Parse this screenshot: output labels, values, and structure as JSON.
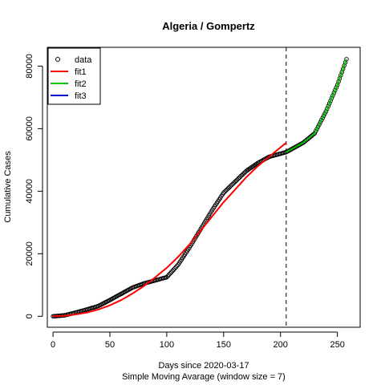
{
  "chart_data": {
    "type": "line",
    "title": "Algeria / Gompertz",
    "xlabel": "Days since 2020-03-17",
    "subtitle": "Simple Moving Avarage (window size = 7)",
    "ylabel": "Cumulative Cases",
    "xlim": [
      -5,
      270
    ],
    "ylim": [
      -3500,
      86000
    ],
    "x_ticks": [
      0,
      50,
      100,
      150,
      200,
      250
    ],
    "y_ticks": [
      0,
      20000,
      40000,
      60000,
      80000
    ],
    "cutoff_x": 205,
    "legend_position": "top-left",
    "legend": [
      {
        "label": "data",
        "kind": "point",
        "color": "#000000"
      },
      {
        "label": "fit1",
        "kind": "line",
        "color": "#ff0000"
      },
      {
        "label": "fit2",
        "kind": "line",
        "color": "#00c000"
      },
      {
        "label": "fit3",
        "kind": "line",
        "color": "#0000cc"
      }
    ],
    "series": [
      {
        "name": "data",
        "style": "points",
        "color": "#000000",
        "x": [
          0,
          10,
          20,
          30,
          40,
          50,
          60,
          70,
          80,
          90,
          100,
          110,
          120,
          130,
          140,
          150,
          160,
          170,
          180,
          190,
          200,
          205,
          210,
          220,
          230,
          240,
          250,
          258
        ],
        "y": [
          0,
          300,
          1200,
          2200,
          3300,
          5200,
          7200,
          9200,
          10500,
          11500,
          12500,
          16500,
          22000,
          28000,
          34000,
          39500,
          43000,
          46500,
          49000,
          51000,
          52000,
          52500,
          53500,
          55500,
          58500,
          65500,
          74000,
          82200
        ]
      },
      {
        "name": "fit1",
        "style": "line",
        "color": "#ff0000",
        "x": [
          0,
          10,
          20,
          30,
          40,
          50,
          60,
          70,
          80,
          90,
          100,
          110,
          120,
          130,
          140,
          150,
          160,
          170,
          180,
          190,
          200,
          205
        ],
        "y": [
          0,
          150,
          600,
          1200,
          2200,
          3500,
          5200,
          7300,
          9700,
          12500,
          15500,
          19000,
          23000,
          27500,
          32000,
          36500,
          40500,
          44500,
          48000,
          51000,
          54000,
          55500
        ]
      },
      {
        "name": "fit2",
        "style": "line",
        "color": "#00c000",
        "x": [
          205,
          210,
          220,
          230,
          240,
          250,
          258
        ],
        "y": [
          52500,
          53500,
          55500,
          58500,
          65500,
          74000,
          82200
        ]
      }
    ]
  }
}
